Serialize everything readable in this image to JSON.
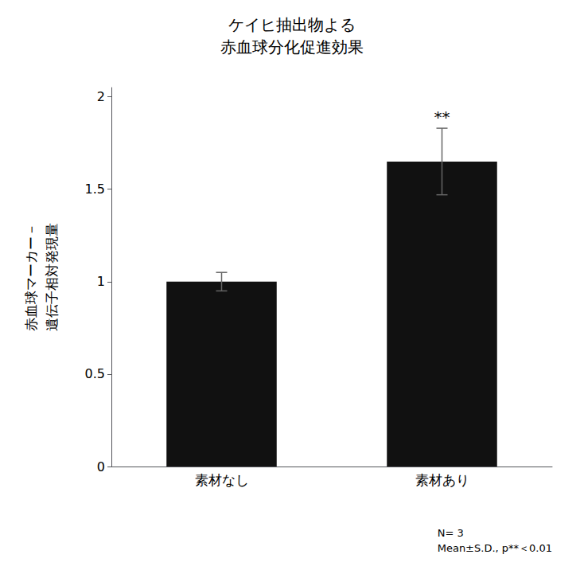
{
  "chart_data": {
    "type": "bar",
    "title": "ケイヒ抽出物よる\n赤血球分化促進効果",
    "categories": [
      "素材なし",
      "素材あり"
    ],
    "values": [
      1.0,
      1.65
    ],
    "errors": [
      0.05,
      0.18
    ],
    "color": "#111111",
    "ylabel": "赤血球マーカー－\n遺伝子相対発現量",
    "ylim": [
      0,
      2.05
    ],
    "yticks": [
      0,
      0.5,
      1,
      1.5,
      2
    ],
    "grid": false,
    "annotations": [
      {
        "category": "素材あり",
        "text": "**"
      }
    ],
    "note": "N= 3\nMean±S.D., p**＜0.01"
  }
}
